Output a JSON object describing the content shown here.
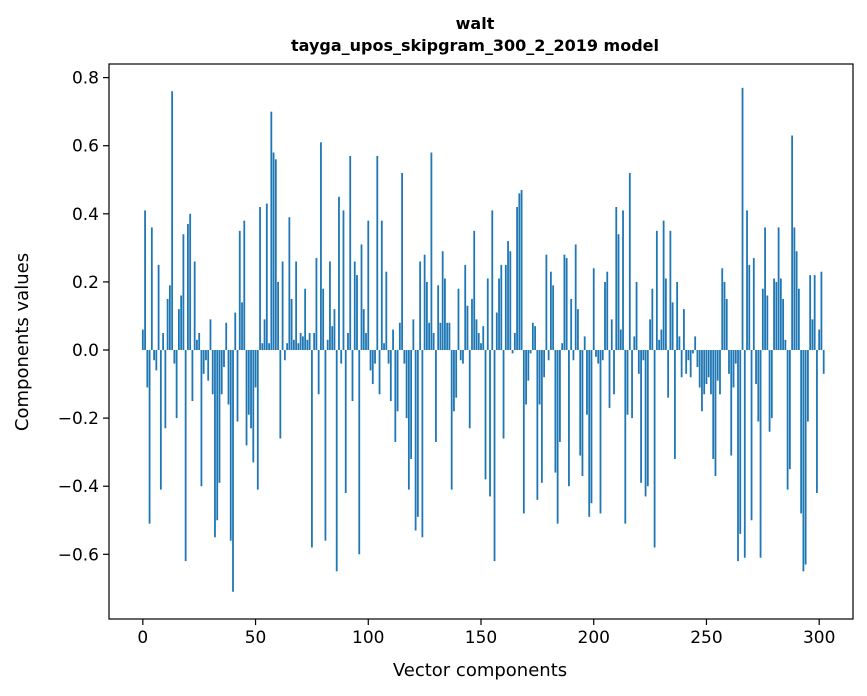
{
  "chart_data": {
    "type": "bar",
    "title": "walt",
    "subtitle": "tayga_upos_skipgram_300_2_2019 model",
    "xlabel": "Vector components",
    "ylabel": "Components values",
    "xlim": [
      -15,
      315
    ],
    "ylim": [
      -0.79,
      0.84
    ],
    "xticks": [
      0,
      50,
      100,
      150,
      200,
      250,
      300
    ],
    "xtick_labels": [
      "0",
      "50",
      "100",
      "150",
      "200",
      "250",
      "300"
    ],
    "yticks": [
      -0.6,
      -0.4,
      -0.2,
      0.0,
      0.2,
      0.4,
      0.6,
      0.8
    ],
    "ytick_labels": [
      "−0.6",
      "−0.4",
      "−0.2",
      "0.0",
      "0.2",
      "0.4",
      "0.6",
      "0.8"
    ],
    "grid": false,
    "bar_color": "#1f77b4",
    "values": [
      0.06,
      0.41,
      -0.11,
      -0.51,
      0.36,
      -0.03,
      -0.06,
      0.25,
      -0.41,
      0.05,
      -0.23,
      0.15,
      0.19,
      0.76,
      -0.04,
      -0.2,
      0.12,
      0.16,
      0.34,
      -0.62,
      0.37,
      0.4,
      -0.15,
      0.26,
      0.03,
      0.05,
      -0.4,
      -0.07,
      -0.03,
      -0.09,
      0.09,
      -0.13,
      -0.55,
      -0.5,
      -0.39,
      -0.13,
      -0.05,
      0.08,
      -0.16,
      -0.56,
      -0.71,
      0.11,
      -0.21,
      0.35,
      0.14,
      0.38,
      -0.28,
      -0.19,
      -0.23,
      -0.33,
      -0.11,
      -0.41,
      0.42,
      0.02,
      0.09,
      0.43,
      0.02,
      0.7,
      0.58,
      0.56,
      0.2,
      -0.26,
      0.26,
      -0.03,
      0.02,
      0.39,
      0.15,
      0.03,
      0.26,
      0.02,
      0.05,
      0.04,
      0.18,
      0.03,
      0.05,
      -0.58,
      0.05,
      0.27,
      -0.13,
      0.61,
      0.18,
      -0.56,
      0.03,
      0.26,
      0.07,
      0.12,
      -0.65,
      0.45,
      -0.04,
      0.41,
      -0.42,
      0.05,
      0.57,
      -0.15,
      0.26,
      0.22,
      -0.6,
      0.31,
      0.12,
      0.05,
      0.38,
      -0.06,
      -0.1,
      -0.04,
      0.57,
      -0.13,
      0.38,
      0.02,
      0.23,
      -0.04,
      -0.15,
      0.06,
      -0.27,
      -0.18,
      0.08,
      0.52,
      -0.04,
      -0.2,
      -0.41,
      -0.32,
      0.09,
      -0.53,
      -0.49,
      0.26,
      -0.55,
      0.28,
      0.2,
      0.08,
      0.58,
      0.05,
      -0.27,
      0.19,
      0.08,
      0.29,
      0.21,
      0.08,
      0.08,
      -0.41,
      -0.18,
      -0.14,
      0.18,
      -0.03,
      -0.04,
      0.25,
      0.13,
      -0.23,
      0.15,
      0.35,
      0.09,
      0.05,
      0.02,
      0.07,
      -0.38,
      0.21,
      -0.43,
      0.41,
      -0.62,
      0.11,
      0.21,
      0.25,
      -0.26,
      0.25,
      0.32,
      0.29,
      -0.01,
      0.05,
      0.42,
      0.46,
      0.47,
      -0.48,
      -0.16,
      -0.09,
      -0.01,
      0.08,
      0.07,
      -0.44,
      -0.16,
      -0.39,
      -0.08,
      0.28,
      -0.03,
      0.23,
      0.19,
      -0.36,
      -0.51,
      -0.27,
      0.02,
      0.28,
      0.27,
      -0.4,
      0.15,
      -0.03,
      0.31,
      0.12,
      -0.31,
      -0.37,
      0.04,
      -0.19,
      -0.49,
      -0.45,
      0.24,
      -0.02,
      -0.04,
      -0.48,
      -0.03,
      0.2,
      0.23,
      -0.17,
      0.09,
      -0.13,
      0.42,
      0.34,
      0.06,
      0.41,
      -0.51,
      -0.19,
      0.52,
      -0.2,
      0.04,
      0.2,
      -0.07,
      -0.39,
      -0.03,
      -0.43,
      -0.4,
      0.09,
      0.18,
      -0.58,
      0.35,
      0.03,
      0.06,
      0.38,
      0.21,
      -0.14,
      0.35,
      0.14,
      -0.32,
      0.2,
      0.04,
      -0.08,
      0.12,
      -0.07,
      -0.03,
      -0.08,
      -0.01,
      0.04,
      -0.05,
      -0.11,
      -0.18,
      -0.13,
      -0.1,
      -0.08,
      -0.13,
      -0.32,
      -0.37,
      -0.09,
      -0.13,
      0.24,
      0.2,
      0.15,
      -0.07,
      -0.31,
      -0.11,
      -0.04,
      -0.62,
      -0.54,
      0.77,
      -0.61,
      0.41,
      0.25,
      -0.5,
      0.27,
      -0.1,
      -0.21,
      -0.61,
      0.18,
      0.36,
      0.16,
      -0.24,
      -0.2,
      0.21,
      0.2,
      0.36,
      0.21,
      0.15,
      0.03,
      -0.41,
      -0.35,
      0.63,
      0.36,
      0.29,
      0.18,
      -0.48,
      -0.65,
      -0.63,
      -0.21,
      0.22,
      0.09,
      0.22,
      -0.42,
      0.06,
      0.23,
      -0.07
    ]
  }
}
